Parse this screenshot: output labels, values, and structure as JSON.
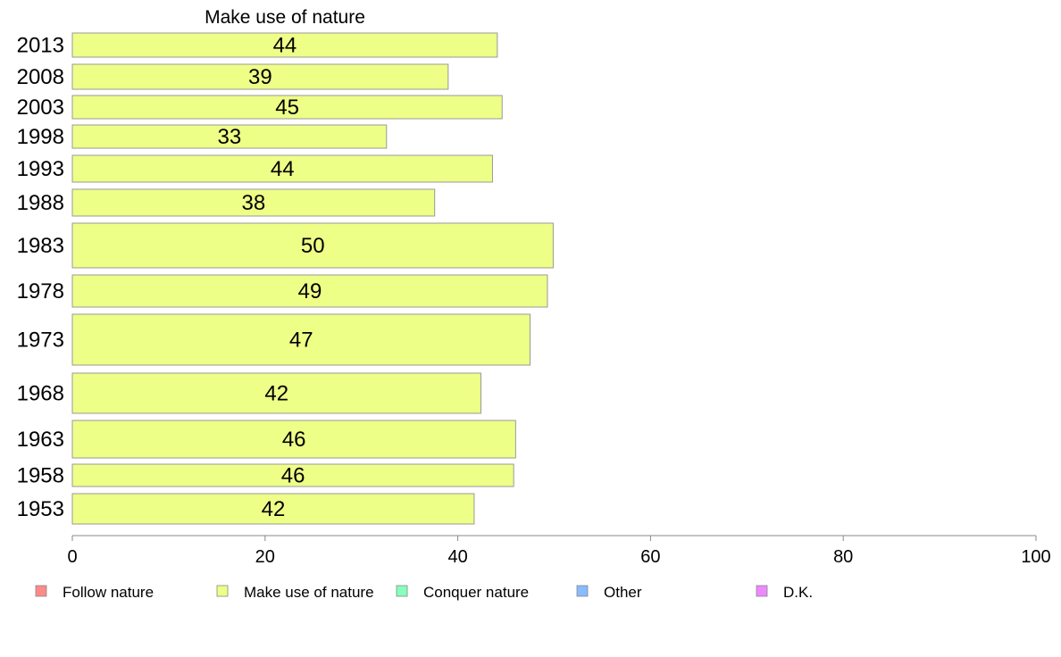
{
  "chart_data": {
    "type": "bar",
    "orientation": "horizontal",
    "title": "Make use of nature",
    "categories": [
      "2013",
      "2008",
      "2003",
      "1998",
      "1993",
      "1988",
      "1983",
      "1978",
      "1973",
      "1968",
      "1963",
      "1958",
      "1953"
    ],
    "series": [
      {
        "name": "Make use of nature",
        "values": [
          44.1,
          39.0,
          44.6,
          32.6,
          43.6,
          37.6,
          49.9,
          49.3,
          47.5,
          42.4,
          46.0,
          45.8,
          41.7
        ],
        "labels": [
          "44",
          "39",
          "45",
          "33",
          "44",
          "38",
          "50",
          "49",
          "47",
          "42",
          "46",
          "46",
          "42"
        ]
      }
    ],
    "xlim": [
      0,
      100
    ],
    "xticks": [
      "0",
      "20",
      "40",
      "60",
      "80",
      "100"
    ],
    "xlabel": "",
    "ylabel": "",
    "grid": false,
    "legend": {
      "placement": "bottom",
      "items": [
        {
          "label": "Follow nature",
          "color": "#ff8a8a"
        },
        {
          "label": "Make use of nature",
          "color": "#eeff88"
        },
        {
          "label": "Conquer nature",
          "color": "#88ffbb"
        },
        {
          "label": "Other",
          "color": "#88bbff"
        },
        {
          "label": "D.K.",
          "color": "#ee88ff"
        }
      ]
    },
    "colors": {
      "bar_fill": "#eeff88",
      "bar_stroke": "#999999",
      "axis": "#888888"
    }
  }
}
